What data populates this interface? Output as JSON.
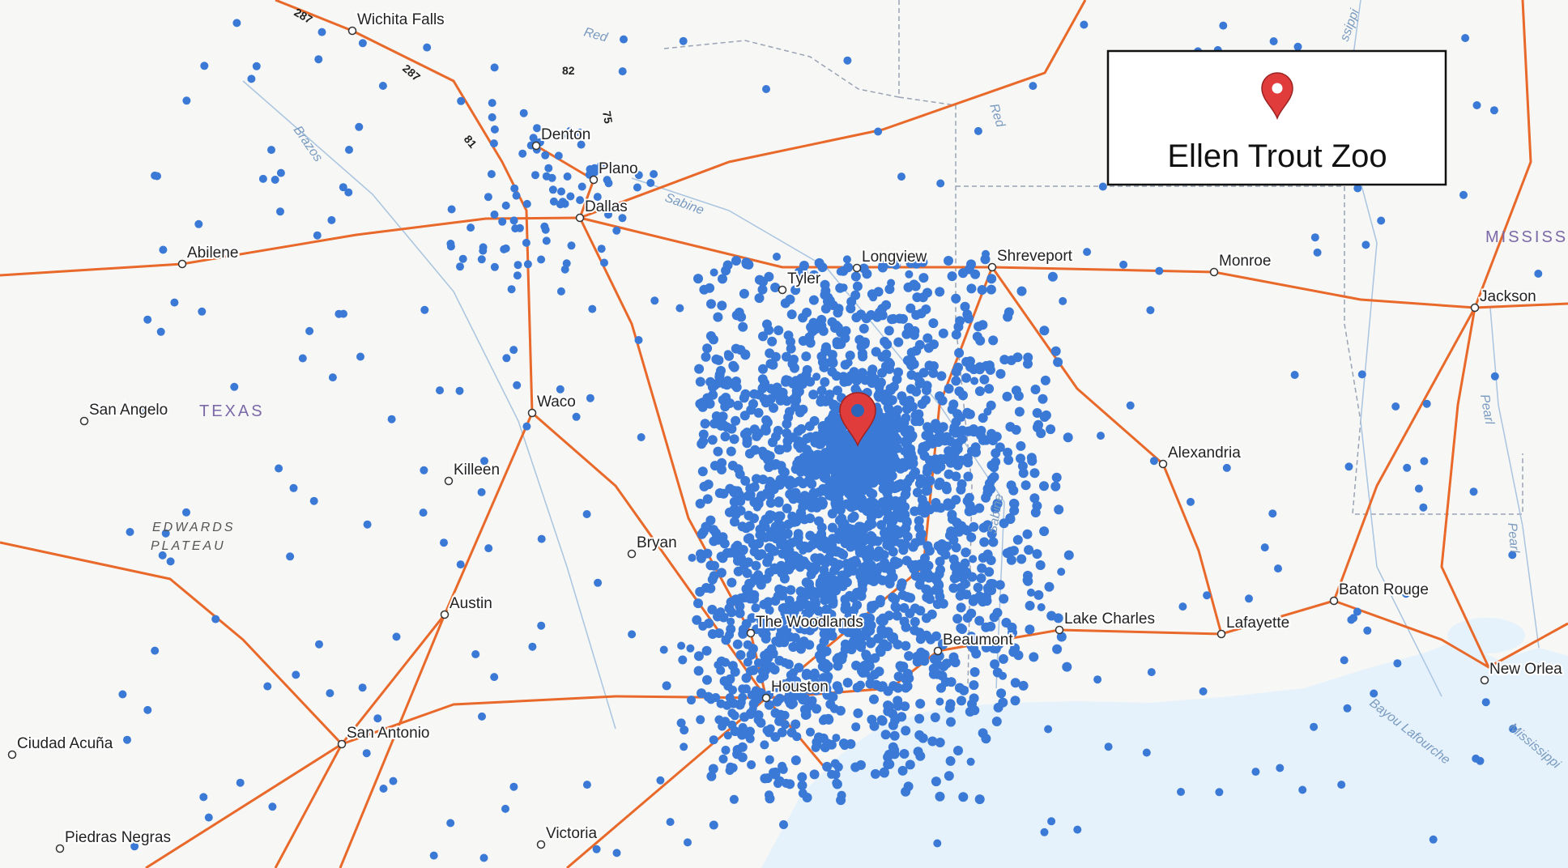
{
  "legend": {
    "title": "Ellen Trout Zoo"
  },
  "cities": [
    "Wichita Falls",
    "Denton",
    "Plano",
    "Dallas",
    "Abilene",
    "Tyler",
    "Longview",
    "Shreveport",
    "Monroe",
    "Jackson",
    "San Angelo",
    "Waco",
    "Alexandria",
    "Killeen",
    "Bryan",
    "Austin",
    "Baton Rouge",
    "The Woodlands",
    "Lake Charles",
    "Lafayette",
    "Beaumont",
    "New Orlea",
    "Houston",
    "San Antonio",
    "Ciudad Acuña",
    "Piedras Negras",
    "Victoria"
  ],
  "regions": [
    "TEXAS",
    "EDWARDS",
    "PLATEAU",
    "MISSISS"
  ],
  "rivers": [
    "Red",
    "Brazos",
    "Sabine",
    "Red",
    "Sabine",
    "Pearl",
    "Pearl",
    "Bayou Lafourche",
    "Mississippi",
    "ssippi"
  ],
  "highways": [
    "287",
    "287",
    "82",
    "75",
    "81"
  ]
}
